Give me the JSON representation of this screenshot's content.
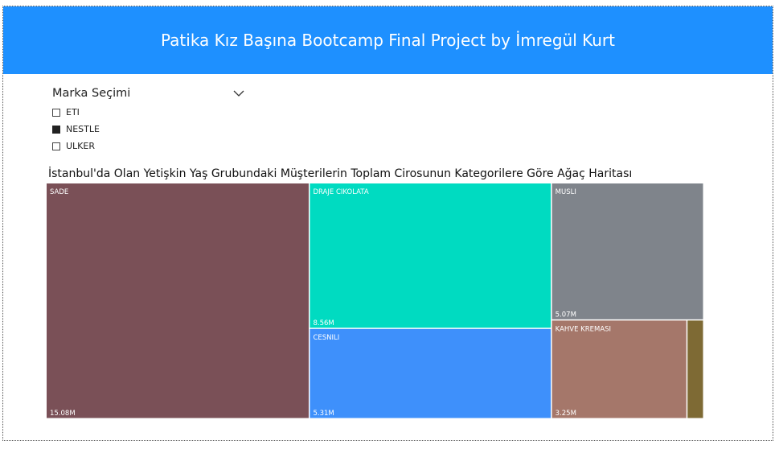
{
  "header": {
    "title": "Patika Kız Başına Bootcamp Final Project by İmregül Kurt",
    "background": "#1E90FF"
  },
  "slicer": {
    "title": "Marka Seçimi",
    "options": [
      {
        "label": "ETI",
        "checked": false
      },
      {
        "label": "NESTLE",
        "checked": true
      },
      {
        "label": "ULKER",
        "checked": false
      }
    ]
  },
  "chart_data": {
    "type": "treemap",
    "title": "İstanbul'da Olan Yetişkin Yaş Grubundaki Müşterilerin Toplam Cirosunun Kategorilere Göre Ağaç Haritası",
    "unit": "M",
    "items": [
      {
        "category": "SADE",
        "value": 15.08,
        "value_label": "15.08M",
        "color": "#7A5057"
      },
      {
        "category": "DRAJE CIKOLATA",
        "value": 8.56,
        "value_label": "8.56M",
        "color": "#00DBC1"
      },
      {
        "category": "CESNILI",
        "value": 5.31,
        "value_label": "5.31M",
        "color": "#3E90FB"
      },
      {
        "category": "MUSLI",
        "value": 5.07,
        "value_label": "5.07M",
        "color": "#7F848B"
      },
      {
        "category": "KAHVE KREMASI",
        "value": 3.25,
        "value_label": "3.25M",
        "color": "#A5776A"
      },
      {
        "category": "",
        "value": 0.4,
        "value_label": "",
        "color": "#7E6A34"
      }
    ]
  }
}
